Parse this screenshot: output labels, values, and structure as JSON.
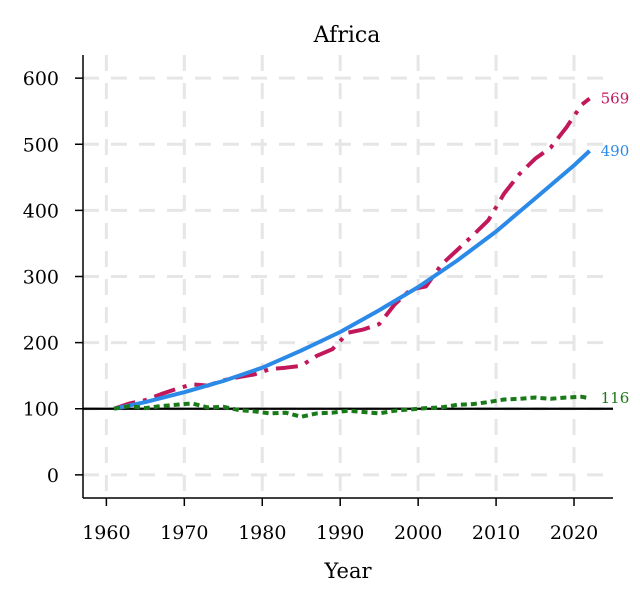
{
  "chart_data": {
    "type": "line",
    "title": "Africa",
    "xlabel": "Year",
    "ylabel": "",
    "xlim": [
      1957,
      2025
    ],
    "ylim": [
      -35,
      635
    ],
    "x_ticks": [
      1960,
      1970,
      1980,
      1990,
      2000,
      2010,
      2020
    ],
    "y_ticks": [
      0,
      100,
      200,
      300,
      400,
      500,
      600
    ],
    "grid": true,
    "reference_line": {
      "y": 100,
      "color": "#000000"
    },
    "series": [
      {
        "color": "#c2185b",
        "style": "dashed",
        "end_label": "569",
        "x": [
          1961,
          1963,
          1965,
          1967,
          1969,
          1971,
          1973,
          1975,
          1977,
          1979,
          1981,
          1983,
          1985,
          1987,
          1989,
          1991,
          1993,
          1995,
          1997,
          1999,
          2001,
          2003,
          2005,
          2007,
          2009,
          2011,
          2013,
          2015,
          2017,
          2019,
          2021,
          2022
        ],
        "values": [
          100,
          108,
          113,
          122,
          130,
          137,
          135,
          143,
          148,
          152,
          160,
          162,
          165,
          180,
          190,
          215,
          220,
          228,
          258,
          280,
          285,
          318,
          340,
          362,
          385,
          425,
          455,
          478,
          495,
          525,
          560,
          569
        ]
      },
      {
        "color": "#2b8ae8",
        "style": "solid",
        "end_label": "490",
        "x": [
          1961,
          1965,
          1970,
          1975,
          1980,
          1985,
          1990,
          1995,
          2000,
          2005,
          2010,
          2015,
          2020,
          2022
        ],
        "values": [
          100,
          110,
          125,
          142,
          162,
          188,
          216,
          249,
          284,
          324,
          368,
          418,
          468,
          490
        ]
      },
      {
        "color": "#1a7a1a",
        "style": "dotted",
        "end_label": "116",
        "x": [
          1961,
          1963,
          1965,
          1967,
          1969,
          1971,
          1973,
          1975,
          1977,
          1979,
          1981,
          1983,
          1985,
          1987,
          1989,
          1991,
          1993,
          1995,
          1997,
          1999,
          2001,
          2003,
          2005,
          2007,
          2009,
          2011,
          2013,
          2015,
          2017,
          2019,
          2021,
          2022
        ],
        "values": [
          100,
          104,
          101,
          104,
          106,
          108,
          102,
          103,
          98,
          96,
          93,
          94,
          88,
          93,
          94,
          97,
          95,
          93,
          97,
          99,
          101,
          102,
          106,
          107,
          110,
          114,
          115,
          117,
          115,
          117,
          118,
          116
        ]
      }
    ]
  }
}
